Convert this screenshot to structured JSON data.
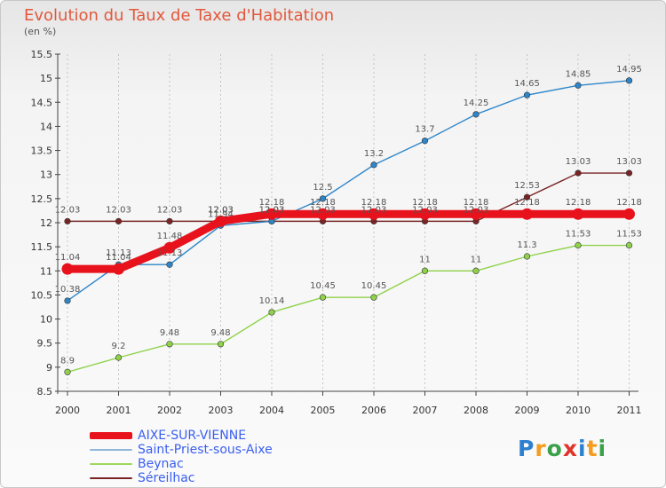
{
  "header": {
    "title": "Evolution du Taux de Taxe d'Habitation",
    "subtitle": "(en %)"
  },
  "chart_data": {
    "type": "line",
    "title": "Evolution du Taux de Taxe d'Habitation",
    "ylabel": "(en %)",
    "xlabel": "",
    "ylim": [
      8.5,
      15.5
    ],
    "yticks": [
      "8.5",
      "9",
      "9.5",
      "10",
      "10.5",
      "11",
      "11.5",
      "12",
      "12.5",
      "13",
      "13.5",
      "14",
      "14.5",
      "15",
      "15.5"
    ],
    "categories": [
      "2000",
      "2001",
      "2002",
      "2003",
      "2004",
      "2005",
      "2006",
      "2007",
      "2008",
      "2009",
      "2010",
      "2011"
    ],
    "grid": "vertical dashed",
    "legend_position": "bottom-left",
    "series": [
      {
        "name": "Séreilhac",
        "color": "#7a2424",
        "values": [
          12.03,
          12.03,
          12.03,
          12.03,
          12.03,
          12.03,
          12.03,
          12.03,
          12.03,
          12.53,
          13.03,
          13.03
        ],
        "labels": [
          "12.03",
          "12.03",
          "12.03",
          "12.03",
          "12.03",
          "12.03",
          "12.03",
          "12.03",
          "12.03",
          "12.53",
          "13.03",
          "13.03"
        ]
      },
      {
        "name": "Saint-Priest-sous-Aixe",
        "color": "#2e86c9",
        "values": [
          10.38,
          11.13,
          11.13,
          11.94,
          12.03,
          12.5,
          13.2,
          13.7,
          14.25,
          14.65,
          14.85,
          14.95
        ],
        "labels": [
          "10.38",
          "11.13",
          "11.13",
          "11.94",
          "12.03",
          "12.5",
          "13.2",
          "13.7",
          "14.25",
          "14.65",
          "14.85",
          "14.95"
        ]
      },
      {
        "name": "Beynac",
        "color": "#8fd24a",
        "values": [
          8.9,
          9.2,
          9.48,
          9.48,
          10.14,
          10.45,
          10.45,
          11,
          11,
          11.3,
          11.53,
          11.53
        ],
        "labels": [
          "8.9",
          "9.2",
          "9.48",
          "9.48",
          "10.14",
          "10.45",
          "10.45",
          "11",
          "11",
          "11.3",
          "11.53",
          "11.53"
        ]
      },
      {
        "name": "AIXE-SUR-VIENNE",
        "color": "#e8121d",
        "values": [
          11.04,
          11.04,
          11.48,
          12.03,
          12.18,
          12.18,
          12.18,
          12.18,
          12.18,
          12.18,
          12.18,
          12.18
        ],
        "labels": [
          "11.04",
          "11.04",
          "11.48",
          "12.03",
          "12.18",
          "12.18",
          "12.18",
          "12.18",
          "12.18",
          "12.18",
          "12.18",
          "12.18"
        ]
      }
    ]
  },
  "legend": [
    {
      "name": "AIXE-SUR-VIENNE",
      "color": "#e8121d"
    },
    {
      "name": "Saint-Priest-sous-Aixe",
      "color": "#8fb5d8"
    },
    {
      "name": "Beynac",
      "color": "#9ed85c"
    },
    {
      "name": "Séreilhac",
      "color": "#7a2424"
    }
  ],
  "logo": {
    "text": "Proxiti",
    "letters": [
      "P",
      "r",
      "o",
      "x",
      "i",
      "t",
      "i"
    ],
    "colors": [
      "#2d7fd0",
      "#f39c1f",
      "#3aa04a",
      "#e0332a",
      "#2d7fd0",
      "#f39c1f",
      "#3aa04a"
    ]
  }
}
